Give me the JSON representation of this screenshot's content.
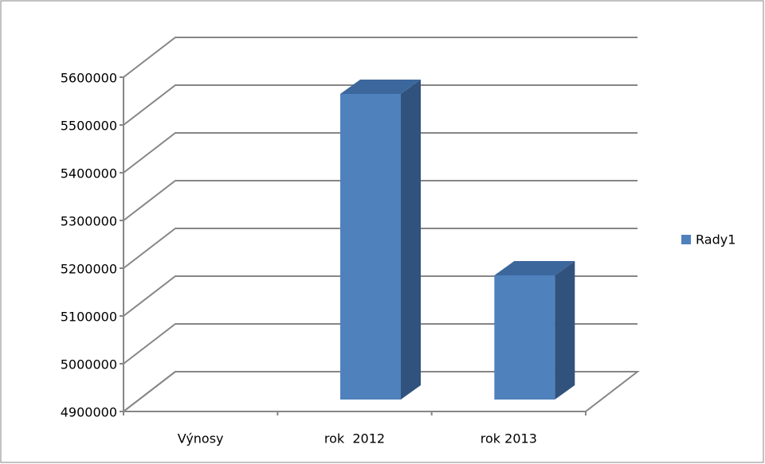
{
  "chart_data": {
    "type": "bar3d",
    "categories": [
      "Výnosy",
      "rok  2012",
      "rok 2013"
    ],
    "series": [
      {
        "name": "Rady1",
        "color": "#4f81bd",
        "values": [
          null,
          5540000,
          5160000
        ]
      }
    ],
    "ylim": [
      4900000,
      5600000
    ],
    "yticks": [
      4900000,
      5000000,
      5100000,
      5200000,
      5300000,
      5400000,
      5500000,
      5600000
    ],
    "grid": true,
    "legend": "right"
  }
}
